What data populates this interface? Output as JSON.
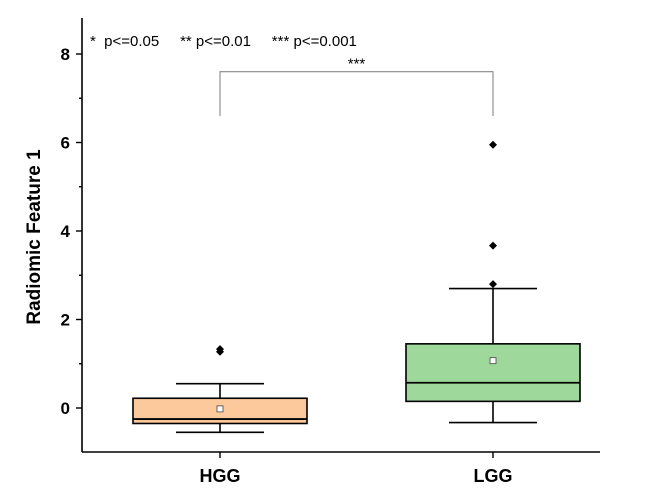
{
  "chart_data": {
    "type": "box",
    "ylabel": "Radiomic Feature 1",
    "xlabel": "",
    "ylim": [
      -1,
      8.6
    ],
    "yticks": [
      0,
      2,
      4,
      6,
      8
    ],
    "categories": [
      "HGG",
      "LGG"
    ],
    "legend_text": "*  p<=0.05     ** p<=0.01     *** p<=0.001",
    "significance": {
      "between": [
        "HGG",
        "LGG"
      ],
      "label": "***",
      "y": 7.6
    },
    "boxes": [
      {
        "name": "HGG",
        "color": "#fbc99b",
        "whisker_low": -0.55,
        "q1": -0.35,
        "median": -0.25,
        "q3": 0.22,
        "whisker_high": 0.55,
        "mean": -0.02,
        "outliers": [
          1.27,
          1.33
        ]
      },
      {
        "name": "LGG",
        "color": "#9ed89a",
        "whisker_low": -0.33,
        "q1": 0.15,
        "median": 0.57,
        "q3": 1.45,
        "whisker_high": 2.7,
        "mean": 1.07,
        "outliers": [
          2.8,
          3.67,
          5.95
        ]
      }
    ]
  }
}
